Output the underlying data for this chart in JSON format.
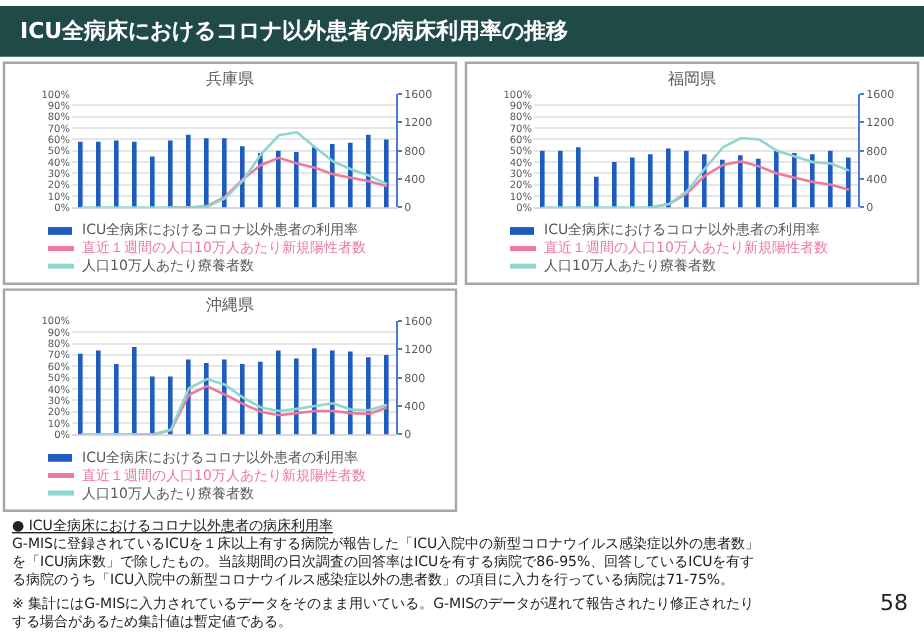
{
  "chart_data": [
    {
      "type": "bar",
      "title": "兵庫県",
      "categories": [
        null,
        null,
        null,
        null,
        null,
        null,
        null,
        null,
        null,
        null,
        null,
        null,
        null,
        null,
        null,
        null,
        null,
        null
      ],
      "legend": "bottom",
      "grid": "y",
      "ylim": [
        0,
        100
      ],
      "yticks": [
        {
          "value": 0,
          "label": "0%"
        },
        {
          "value": 10,
          "label": "10%"
        },
        {
          "value": 20,
          "label": "20%"
        },
        {
          "value": 30,
          "label": "30%"
        },
        {
          "value": 40,
          "label": "40%"
        },
        {
          "value": 50,
          "label": "50%"
        },
        {
          "value": 60,
          "label": "60%"
        },
        {
          "value": 70,
          "label": "70%"
        },
        {
          "value": 80,
          "label": "80%"
        },
        {
          "value": 90,
          "label": "90%"
        },
        {
          "value": 100,
          "label": "100%"
        }
      ],
      "y2lim": [
        0,
        1600
      ],
      "y2ticks": [
        0,
        400,
        800,
        1200,
        1600
      ],
      "series": [
        {
          "name": "ICU全病床におけるコロナ以外患者の利用率",
          "type": "bar",
          "color": "#1f5cbf",
          "values": [
            58,
            58,
            59,
            58,
            45,
            59,
            64,
            61,
            61,
            54,
            48,
            50,
            49,
            53,
            56,
            57,
            64,
            60
          ]
        },
        {
          "name": "直近１週間の人口10万人あたり新規陽性者数",
          "type": "line",
          "axis": "y2",
          "color": "#ec7a9c",
          "values": [
            null,
            null,
            null,
            null,
            null,
            0,
            0,
            20,
            150,
            400,
            600,
            700,
            620,
            560,
            470,
            420,
            370,
            300
          ]
        },
        {
          "name": "人口10万人あたり療養者数",
          "type": "line",
          "axis": "y2",
          "color": "#8fd6d0",
          "values": [
            0,
            0,
            0,
            0,
            0,
            0,
            0,
            10,
            130,
            380,
            750,
            1020,
            1060,
            850,
            650,
            540,
            450,
            330
          ]
        }
      ]
    },
    {
      "type": "bar",
      "title": "福岡県",
      "categories": [
        null,
        null,
        null,
        null,
        null,
        null,
        null,
        null,
        null,
        null,
        null,
        null,
        null,
        null,
        null,
        null,
        null,
        null
      ],
      "legend": "bottom",
      "grid": "y",
      "ylim": [
        0,
        100
      ],
      "yticks": [
        {
          "value": 0,
          "label": "0%"
        },
        {
          "value": 10,
          "label": "10%"
        },
        {
          "value": 20,
          "label": "20%"
        },
        {
          "value": 30,
          "label": "30%"
        },
        {
          "value": 40,
          "label": "40%"
        },
        {
          "value": 50,
          "label": "50%"
        },
        {
          "value": 60,
          "label": "60%"
        },
        {
          "value": 70,
          "label": "70%"
        },
        {
          "value": 80,
          "label": "80%"
        },
        {
          "value": 90,
          "label": "90%"
        },
        {
          "value": 100,
          "label": "100%"
        }
      ],
      "y2lim": [
        0,
        1600
      ],
      "y2ticks": [
        0,
        400,
        800,
        1200,
        1600
      ],
      "series": [
        {
          "name": "ICU全病床におけるコロナ以外患者の利用率",
          "type": "bar",
          "color": "#1f5cbf",
          "values": [
            50,
            50,
            53,
            27,
            40,
            44,
            47,
            52,
            50,
            47,
            42,
            46,
            43,
            50,
            48,
            47,
            50,
            44
          ]
        },
        {
          "name": "直近１週間の人口10万人あたり新規陽性者数",
          "type": "line",
          "axis": "y2",
          "color": "#ec7a9c",
          "values": [
            null,
            null,
            null,
            null,
            null,
            null,
            0,
            50,
            200,
            450,
            600,
            650,
            580,
            480,
            420,
            360,
            320,
            250
          ]
        },
        {
          "name": "人口10万人あたり療養者数",
          "type": "line",
          "axis": "y2",
          "color": "#8fd6d0",
          "values": [
            0,
            0,
            0,
            0,
            0,
            0,
            0,
            50,
            230,
            550,
            850,
            980,
            960,
            800,
            720,
            640,
            620,
            520
          ]
        }
      ]
    },
    {
      "type": "bar",
      "title": "沖縄県",
      "categories": [
        null,
        null,
        null,
        null,
        null,
        null,
        null,
        null,
        null,
        null,
        null,
        null,
        null,
        null,
        null,
        null,
        null,
        null
      ],
      "legend": "bottom",
      "grid": "y",
      "ylim": [
        0,
        100
      ],
      "yticks": [
        {
          "value": 0,
          "label": "0%"
        },
        {
          "value": 10,
          "label": "10%"
        },
        {
          "value": 20,
          "label": "20%"
        },
        {
          "value": 30,
          "label": "30%"
        },
        {
          "value": 40,
          "label": "40%"
        },
        {
          "value": 50,
          "label": "50%"
        },
        {
          "value": 60,
          "label": "60%"
        },
        {
          "value": 70,
          "label": "70%"
        },
        {
          "value": 80,
          "label": "80%"
        },
        {
          "value": 90,
          "label": "90%"
        },
        {
          "value": 100,
          "label": "100%"
        }
      ],
      "y2lim": [
        0,
        1600
      ],
      "y2ticks": [
        0,
        400,
        800,
        1200,
        1600
      ],
      "series": [
        {
          "name": "ICU全病床におけるコロナ以外患者の利用率",
          "type": "bar",
          "color": "#1f5cbf",
          "values": [
            71,
            74,
            62,
            77,
            51,
            51,
            66,
            63,
            66,
            62,
            64,
            74,
            67,
            76,
            74,
            73,
            68,
            70
          ]
        },
        {
          "name": "直近１週間の人口10万人あたり新規陽性者数",
          "type": "line",
          "axis": "y2",
          "color": "#ec7a9c",
          "values": [
            null,
            null,
            null,
            0,
            0,
            60,
            560,
            680,
            560,
            430,
            320,
            270,
            300,
            330,
            330,
            300,
            290,
            380
          ]
        },
        {
          "name": "人口10万人あたり療養者数",
          "type": "line",
          "axis": "y2",
          "color": "#8fd6d0",
          "values": [
            0,
            0,
            0,
            0,
            0,
            70,
            650,
            780,
            700,
            520,
            380,
            330,
            360,
            400,
            440,
            350,
            340,
            420
          ]
        }
      ]
    },
    {
      "type": "other",
      "title": "ICU全病床におけるコロナ以外患者の病床利用率の推移",
      "annotations": [
        "● ICU全病床におけるコロナ以外患者の病床利用率",
        "G-MISに登録されているICUを１床以上有する病院が報告した「ICU入院中の新型コロナウイルス感染症以外の患者数」を「ICU病床数」で除したもの。当該期間の日次調査の回答率はICUを有する病院で86-95%、回答しているICUを有する病院のうち「ICU入院中の新型コロナウイルス感染症以外の患者数」の項目に入力を行っている病院は71-75%。",
        "58",
        "※ 集計にはG-MISに入力されているデータをそのまま用いている。G-MISのデータが遅れて報告されたり修正されたりする場合があるため集計値は暫定値である。"
      ]
    }
  ]
}
